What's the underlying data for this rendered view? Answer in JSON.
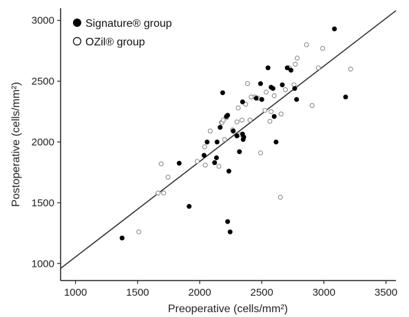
{
  "chart_data": {
    "type": "scatter",
    "xlabel": "Preoperative (cells/mm²)",
    "ylabel": "Postoperative (cells/mm²)",
    "xlim": [
      880,
      3580
    ],
    "ylim": [
      860,
      3100
    ],
    "xticks": [
      1000,
      1500,
      2000,
      2500,
      3000,
      3500
    ],
    "yticks": [
      1000,
      1500,
      2000,
      2500,
      3000
    ],
    "grid": false,
    "legend_position": "top-left",
    "regression_line": {
      "x": [
        880,
        3580
      ],
      "y": [
        960,
        3080
      ]
    },
    "series": [
      {
        "name": "Signature® group",
        "marker": "filled-circle",
        "color": "#000000",
        "points": [
          [
            1375,
            1210
          ],
          [
            1835,
            1825
          ],
          [
            1915,
            1470
          ],
          [
            2035,
            1890
          ],
          [
            2060,
            2000
          ],
          [
            2120,
            1830
          ],
          [
            2135,
            1870
          ],
          [
            2140,
            2000
          ],
          [
            2165,
            2120
          ],
          [
            2185,
            2405
          ],
          [
            2215,
            2210
          ],
          [
            2225,
            2220
          ],
          [
            2225,
            1345
          ],
          [
            2235,
            1760
          ],
          [
            2245,
            1260
          ],
          [
            2270,
            2090
          ],
          [
            2300,
            2050
          ],
          [
            2320,
            1920
          ],
          [
            2345,
            2330
          ],
          [
            2345,
            2065
          ],
          [
            2350,
            2020
          ],
          [
            2355,
            2040
          ],
          [
            2455,
            2360
          ],
          [
            2490,
            2480
          ],
          [
            2500,
            2350
          ],
          [
            2550,
            2610
          ],
          [
            2575,
            2450
          ],
          [
            2590,
            2440
          ],
          [
            2600,
            2210
          ],
          [
            2615,
            2000
          ],
          [
            2665,
            2470
          ],
          [
            2705,
            2610
          ],
          [
            2735,
            2590
          ],
          [
            2765,
            2440
          ],
          [
            2780,
            2350
          ],
          [
            3085,
            2930
          ],
          [
            3175,
            2370
          ]
        ]
      },
      {
        "name": "OZil® group",
        "marker": "open-circle",
        "color": "#000000",
        "points": [
          [
            1510,
            1260
          ],
          [
            1665,
            1580
          ],
          [
            1690,
            1820
          ],
          [
            1710,
            1580
          ],
          [
            1745,
            1710
          ],
          [
            1980,
            1840
          ],
          [
            2040,
            1960
          ],
          [
            2045,
            1810
          ],
          [
            2085,
            2090
          ],
          [
            2155,
            1800
          ],
          [
            2175,
            2160
          ],
          [
            2180,
            2160
          ],
          [
            2190,
            2180
          ],
          [
            2200,
            2020
          ],
          [
            2215,
            2200
          ],
          [
            2265,
            2100
          ],
          [
            2300,
            2165
          ],
          [
            2310,
            2280
          ],
          [
            2330,
            2060
          ],
          [
            2340,
            2180
          ],
          [
            2370,
            2310
          ],
          [
            2385,
            2480
          ],
          [
            2405,
            2180
          ],
          [
            2415,
            2370
          ],
          [
            2445,
            2370
          ],
          [
            2470,
            2360
          ],
          [
            2490,
            1910
          ],
          [
            2525,
            2260
          ],
          [
            2535,
            2410
          ],
          [
            2565,
            2170
          ],
          [
            2575,
            2250
          ],
          [
            2600,
            2380
          ],
          [
            2650,
            1545
          ],
          [
            2655,
            2230
          ],
          [
            2690,
            2430
          ],
          [
            2720,
            2610
          ],
          [
            2760,
            2470
          ],
          [
            2770,
            2640
          ],
          [
            2785,
            2690
          ],
          [
            2860,
            2800
          ],
          [
            2905,
            2300
          ],
          [
            2955,
            2610
          ],
          [
            2990,
            2770
          ],
          [
            3215,
            2600
          ]
        ]
      }
    ]
  }
}
